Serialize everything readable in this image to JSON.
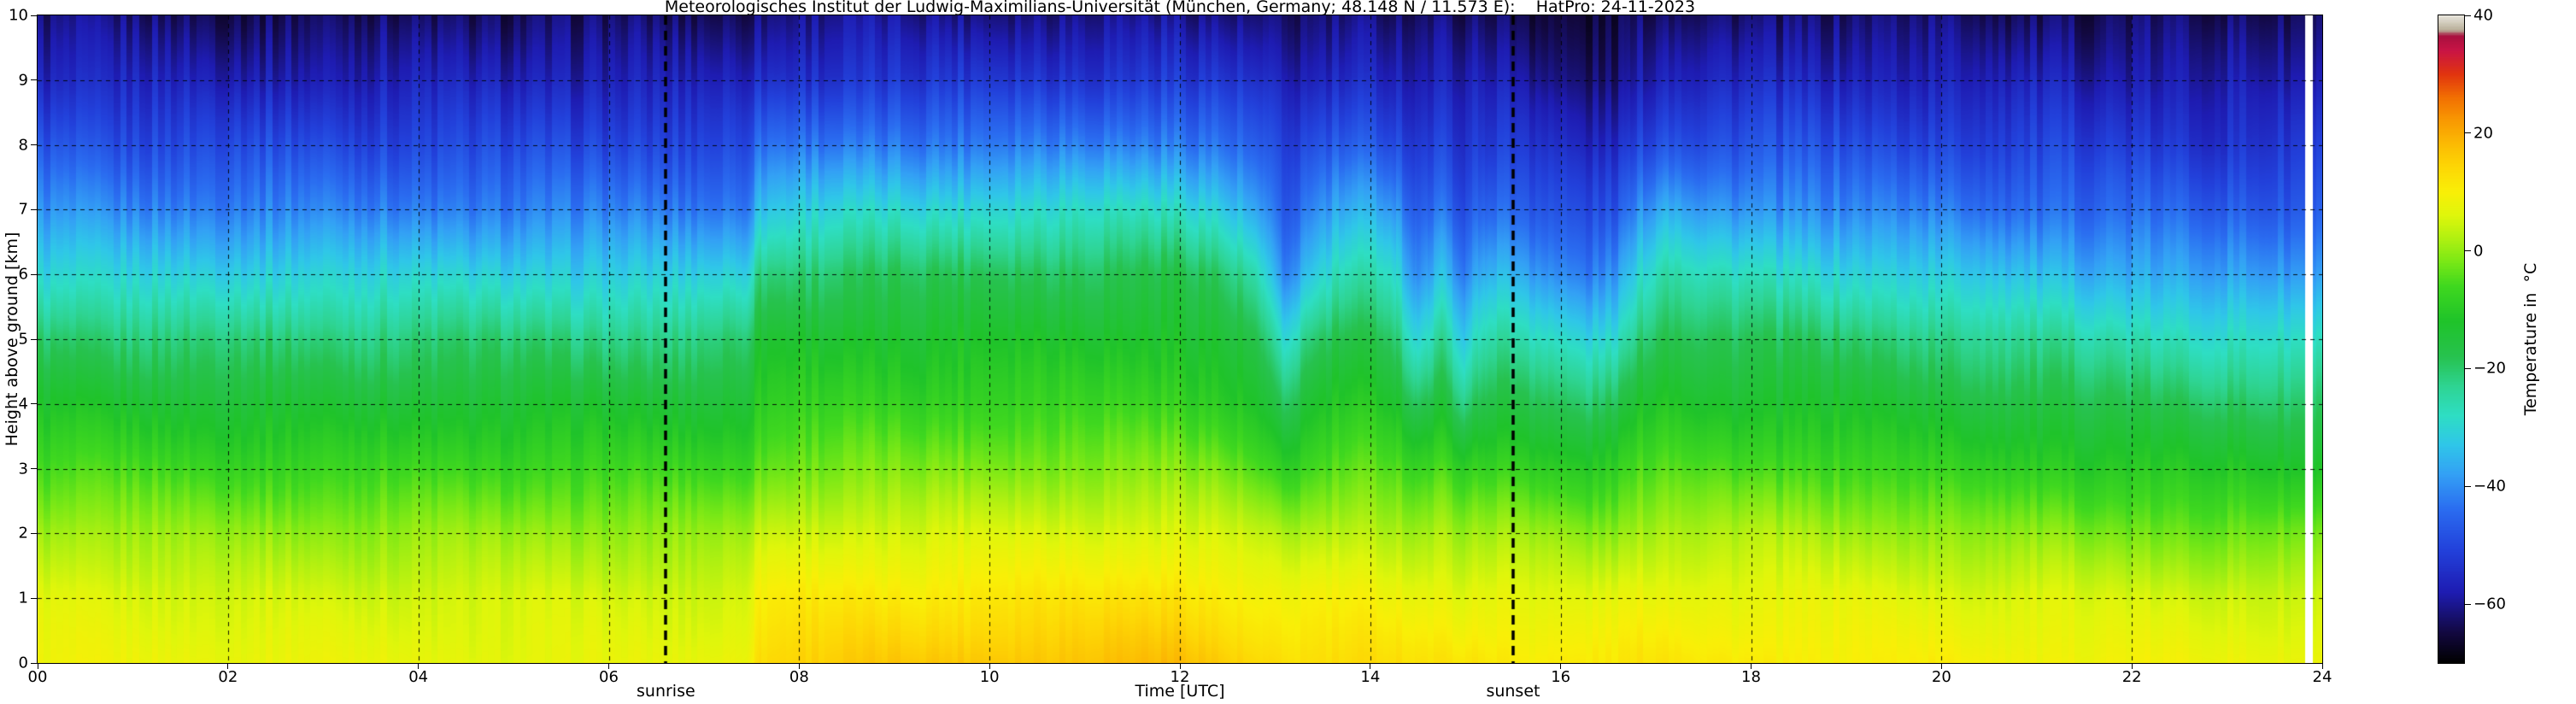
{
  "chart_data": {
    "type": "heatmap",
    "title": "Meteorologisches Institut der Ludwig-Maximilians-Universität (München, Germany; 48.148 N / 11.573 E):    HatPro: 24-11-2023",
    "xlabel": "Time [UTC]",
    "ylabel": "Height above ground [km]",
    "xlim": [
      0,
      24
    ],
    "ylim": [
      0,
      10
    ],
    "grid": true,
    "xticks": [
      "00",
      "02",
      "04",
      "06",
      "08",
      "10",
      "12",
      "14",
      "16",
      "18",
      "20",
      "22",
      "24"
    ],
    "yticks": [
      "0",
      "1",
      "2",
      "3",
      "4",
      "5",
      "6",
      "7",
      "8",
      "9",
      "10"
    ],
    "y": [
      0,
      1,
      2,
      3,
      4,
      5,
      6,
      7,
      8,
      9,
      10
    ],
    "x": [
      0,
      1,
      2,
      3,
      4,
      5,
      6,
      6.7,
      7.2,
      7.45,
      7.6,
      8,
      9,
      10,
      11,
      12,
      12.4,
      12.8,
      13.1,
      13.35,
      13.7,
      14.2,
      14.5,
      14.75,
      15,
      15.25,
      15.6,
      15.95,
      16.3,
      16.6,
      16.9,
      17.15,
      17.5,
      18,
      19,
      20,
      21,
      22,
      23,
      23.85,
      24
    ],
    "values": [
      [
        8,
        6,
        1,
        -6,
        -13,
        -20,
        -30,
        -40,
        -48,
        -56,
        -62
      ],
      [
        8,
        6,
        1,
        -6,
        -13,
        -21,
        -31,
        -41,
        -49,
        -56,
        -62
      ],
      [
        8,
        5,
        0,
        -7,
        -14,
        -21,
        -31,
        -41,
        -49,
        -57,
        -63
      ],
      [
        8,
        5,
        0,
        -7,
        -14,
        -21,
        -30,
        -41,
        -49,
        -57,
        -63
      ],
      [
        7,
        5,
        0,
        -7,
        -14,
        -21,
        -31,
        -42,
        -50,
        -57,
        -63
      ],
      [
        7,
        5,
        0,
        -7,
        -14,
        -21,
        -31,
        -42,
        -50,
        -57,
        -63
      ],
      [
        7,
        5,
        0,
        -7,
        -14,
        -22,
        -32,
        -42,
        -50,
        -57,
        -63
      ],
      [
        7,
        5,
        0,
        -7,
        -14,
        -22,
        -32,
        -42,
        -50,
        -57,
        -63
      ],
      [
        8,
        5,
        0,
        -7,
        -14,
        -21,
        -31,
        -42,
        -50,
        -57,
        -63
      ],
      [
        9,
        6,
        1,
        -6,
        -13,
        -20,
        -30,
        -41,
        -49,
        -56,
        -62
      ],
      [
        14,
        10,
        4,
        -3,
        -9,
        -14,
        -21,
        -33,
        -44,
        -54,
        -61
      ],
      [
        15,
        11,
        5,
        -2,
        -8,
        -13,
        -20,
        -31,
        -43,
        -53,
        -60
      ],
      [
        16,
        11,
        5,
        -2,
        -8,
        -13,
        -19,
        -30,
        -42,
        -53,
        -60
      ],
      [
        17,
        12,
        6,
        -1,
        -7,
        -12,
        -18,
        -29,
        -42,
        -52,
        -60
      ],
      [
        17,
        12,
        6,
        -1,
        -7,
        -12,
        -18,
        -28,
        -41,
        -52,
        -60
      ],
      [
        18,
        13,
        6,
        -1,
        -7,
        -12,
        -17,
        -28,
        -41,
        -52,
        -60
      ],
      [
        16,
        11,
        5,
        -2,
        -9,
        -14,
        -20,
        -31,
        -43,
        -53,
        -61
      ],
      [
        14,
        9,
        3,
        -5,
        -12,
        -18,
        -26,
        -37,
        -47,
        -55,
        -62
      ],
      [
        13,
        8,
        1,
        -9,
        -20,
        -31,
        -42,
        -48,
        -53,
        -58,
        -63
      ],
      [
        13,
        9,
        2,
        -6,
        -14,
        -22,
        -33,
        -42,
        -50,
        -57,
        -62
      ],
      [
        13,
        9,
        3,
        -4,
        -11,
        -17,
        -26,
        -37,
        -47,
        -55,
        -62
      ],
      [
        13,
        9,
        3,
        -4,
        -11,
        -17,
        -26,
        -37,
        -47,
        -55,
        -62
      ],
      [
        12,
        8,
        1,
        -8,
        -19,
        -30,
        -41,
        -47,
        -52,
        -58,
        -63
      ],
      [
        12,
        8,
        2,
        -6,
        -14,
        -23,
        -34,
        -43,
        -50,
        -57,
        -62
      ],
      [
        12,
        7,
        0,
        -9,
        -21,
        -32,
        -42,
        -48,
        -53,
        -58,
        -63
      ],
      [
        12,
        8,
        1,
        -7,
        -15,
        -24,
        -34,
        -43,
        -51,
        -57,
        -62
      ],
      [
        11,
        7,
        1,
        -7,
        -16,
        -26,
        -36,
        -45,
        -52,
        -58,
        -63
      ],
      [
        11,
        6,
        0,
        -9,
        -19,
        -29,
        -40,
        -48,
        -55,
        -61,
        -65
      ],
      [
        11,
        6,
        -1,
        -10,
        -21,
        -31,
        -42,
        -50,
        -57,
        -62,
        -66
      ],
      [
        11,
        7,
        0,
        -8,
        -18,
        -28,
        -38,
        -48,
        -55,
        -61,
        -65
      ],
      [
        12,
        8,
        2,
        -5,
        -12,
        -19,
        -28,
        -39,
        -49,
        -57,
        -63
      ],
      [
        12,
        8,
        3,
        -4,
        -10,
        -16,
        -24,
        -35,
        -46,
        -55,
        -62
      ],
      [
        11,
        8,
        2,
        -5,
        -12,
        -18,
        -27,
        -38,
        -48,
        -56,
        -62
      ],
      [
        11,
        7,
        2,
        -6,
        -13,
        -19,
        -28,
        -39,
        -48,
        -56,
        -62
      ],
      [
        10,
        7,
        1,
        -6,
        -13,
        -20,
        -30,
        -41,
        -49,
        -56,
        -62
      ],
      [
        10,
        6,
        0,
        -8,
        -15,
        -22,
        -32,
        -42,
        -50,
        -57,
        -62
      ],
      [
        9,
        6,
        -1,
        -9,
        -16,
        -24,
        -34,
        -44,
        -51,
        -57,
        -63
      ],
      [
        9,
        5,
        -2,
        -10,
        -18,
        -26,
        -36,
        -45,
        -52,
        -58,
        -63
      ],
      [
        8,
        5,
        -3,
        -11,
        -19,
        -28,
        -38,
        -46,
        -53,
        -58,
        -63
      ],
      [
        8,
        4,
        -3,
        -12,
        -20,
        -29,
        -39,
        -47,
        -53,
        -59,
        -63
      ],
      [
        8,
        4,
        -3,
        -12,
        -20,
        -29,
        -39,
        -47,
        -53,
        -59,
        -63
      ]
    ],
    "missing_time_ranges": [
      [
        23.82,
        23.9
      ]
    ],
    "annotations": {
      "sunrise": {
        "label": "sunrise",
        "t": 6.6
      },
      "sunset": {
        "label": "sunset",
        "t": 15.5
      }
    },
    "colorbar": {
      "label": "Temperature in  °C",
      "min": -70,
      "max": 40,
      "ticks": [
        40,
        20,
        0,
        -20,
        -40,
        -60
      ],
      "tick_labels": [
        "40",
        "20",
        "0",
        "−20",
        "−40",
        "−60"
      ],
      "stops": [
        [
          -70,
          "#000000"
        ],
        [
          -65,
          "#12083e"
        ],
        [
          -58,
          "#1e1cb2"
        ],
        [
          -51,
          "#2240da"
        ],
        [
          -44,
          "#2a6cf0"
        ],
        [
          -38,
          "#33a0f5"
        ],
        [
          -33,
          "#2fc6e9"
        ],
        [
          -28,
          "#2edec4"
        ],
        [
          -23,
          "#2ed492"
        ],
        [
          -18,
          "#27c24f"
        ],
        [
          -12,
          "#1fc32a"
        ],
        [
          -6,
          "#3fd81f"
        ],
        [
          -2,
          "#78e816"
        ],
        [
          2,
          "#aff011"
        ],
        [
          6,
          "#dff60b"
        ],
        [
          10,
          "#f9ef07"
        ],
        [
          14,
          "#fdd805"
        ],
        [
          18,
          "#fcbc03"
        ],
        [
          22,
          "#f99a02"
        ],
        [
          26,
          "#f27002"
        ],
        [
          30,
          "#e1340f"
        ],
        [
          34,
          "#c91445"
        ],
        [
          36.5,
          "#a8103f"
        ],
        [
          37.5,
          "#b9b09a"
        ],
        [
          40,
          "#e9e6de"
        ]
      ]
    }
  }
}
